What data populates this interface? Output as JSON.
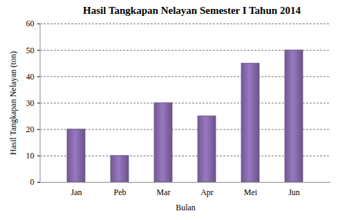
{
  "chart_data": {
    "type": "bar",
    "title": "Hasil Tangkapan Nelayan Semester I Tahun 2014",
    "x_label": "Bulan",
    "y_label": "Hasil Tangkapan Nelayan (ton)",
    "categories": [
      "Jan",
      "Peb",
      "Mar",
      "Apr",
      "Mei",
      "Jun"
    ],
    "values": [
      20,
      10,
      30,
      25,
      45,
      50
    ],
    "color": "#8064a2",
    "ylim": [
      0,
      60
    ],
    "yticks": [
      0,
      10,
      20,
      30,
      40,
      50,
      60
    ],
    "grid": true
  }
}
